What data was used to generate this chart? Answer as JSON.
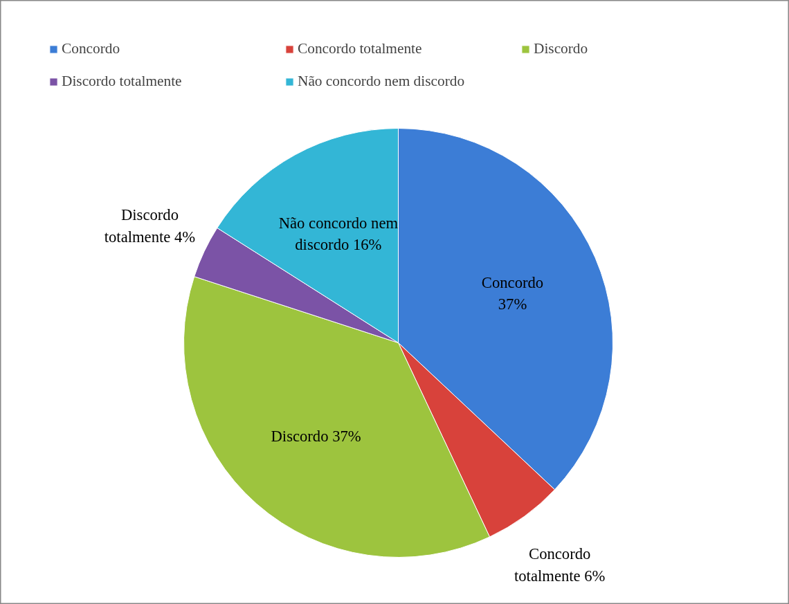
{
  "chart_data": {
    "type": "pie",
    "categories": [
      "Concordo",
      "Concordo totalmente",
      "Discordo",
      "Discordo totalmente",
      "Não concordo nem discordo"
    ],
    "values": [
      37,
      6,
      37,
      4,
      16
    ],
    "colors": [
      "#3c7dd6",
      "#d8423b",
      "#9dc43e",
      "#7b53a6",
      "#33b6d6"
    ],
    "value_labels": [
      "Concordo\n37%",
      "Concordo\ntotalmente 6%",
      "Discordo 37%",
      "Discordo\ntotalmente 4%",
      "Não concordo nem\ndiscordo 16%"
    ],
    "legend": "top"
  }
}
